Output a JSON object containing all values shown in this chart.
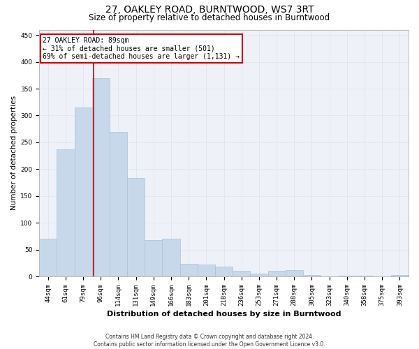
{
  "title": "27, OAKLEY ROAD, BURNTWOOD, WS7 3RT",
  "subtitle": "Size of property relative to detached houses in Burntwood",
  "xlabel": "Distribution of detached houses by size in Burntwood",
  "ylabel": "Number of detached properties",
  "categories": [
    "44sqm",
    "61sqm",
    "79sqm",
    "96sqm",
    "114sqm",
    "131sqm",
    "149sqm",
    "166sqm",
    "183sqm",
    "201sqm",
    "218sqm",
    "236sqm",
    "253sqm",
    "271sqm",
    "288sqm",
    "305sqm",
    "323sqm",
    "340sqm",
    "358sqm",
    "375sqm",
    "393sqm"
  ],
  "values": [
    70,
    237,
    315,
    370,
    270,
    183,
    68,
    70,
    23,
    22,
    18,
    10,
    5,
    10,
    12,
    3,
    0,
    2,
    1,
    0,
    3
  ],
  "bar_color": "#c8d8eb",
  "bar_edge_color": "#a8c0d8",
  "grid_color": "#dde8f0",
  "background_color": "#eef2f8",
  "red_line_x": 2.6,
  "annotation_line1": "27 OAKLEY ROAD: 89sqm",
  "annotation_line2": "← 31% of detached houses are smaller (501)",
  "annotation_line3": "69% of semi-detached houses are larger (1,131) →",
  "annotation_box_color": "#ffffff",
  "annotation_border_color": "#cc0000",
  "ylim": [
    0,
    460
  ],
  "yticks": [
    0,
    50,
    100,
    150,
    200,
    250,
    300,
    350,
    400,
    450
  ],
  "title_fontsize": 10,
  "subtitle_fontsize": 8.5,
  "xlabel_fontsize": 8,
  "ylabel_fontsize": 7.5,
  "tick_fontsize": 6.5,
  "annotation_fontsize": 7,
  "footer_line1": "Contains HM Land Registry data © Crown copyright and database right 2024.",
  "footer_line2": "Contains public sector information licensed under the Open Government Licence v3.0.",
  "footer_fontsize": 5.5
}
